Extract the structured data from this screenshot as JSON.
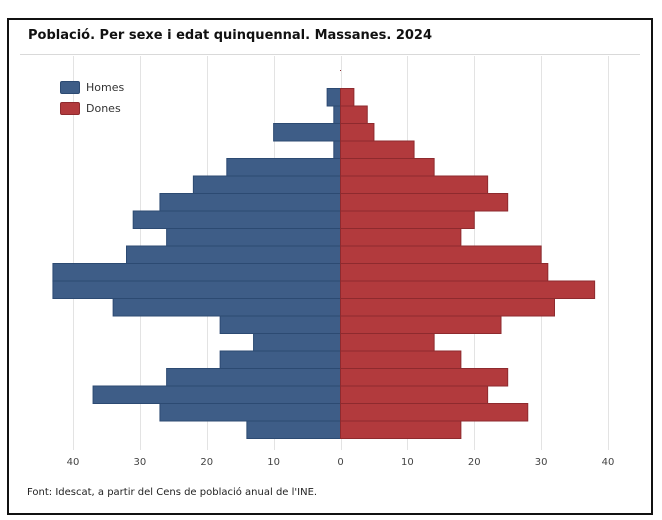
{
  "title": "Població. Per sexe i edat quinquennal. Massanes. 2024",
  "source": "Font: Idescat, a partir del Cens de població anual de l'INE.",
  "colors": {
    "homes": "#3e5d87",
    "homes_edge": "#2c4a72",
    "dones": "#b23a3d",
    "dones_edge": "#8e2a2e",
    "grid": "#e3e3e3"
  },
  "chart_data": {
    "type": "bar",
    "orientation": "horizontal",
    "layout": "population-pyramid",
    "title": "Població. Per sexe i edat quinquennal. Massanes. 2024",
    "xlabel": "",
    "ylabel": "",
    "xlim": [
      -40,
      40
    ],
    "x_ticks": [
      -40,
      -30,
      -20,
      -10,
      0,
      10,
      20,
      30,
      40
    ],
    "x_tick_labels": [
      "40",
      "30",
      "20",
      "10",
      "0",
      "10",
      "20",
      "30",
      "40"
    ],
    "grid": true,
    "legend_position": "top-left",
    "row_order": "top-to-bottom",
    "series": [
      {
        "name": "Homes",
        "color": "#3e5d87",
        "values": [
          0,
          2,
          1,
          10,
          1,
          17,
          22,
          27,
          31,
          26,
          32,
          43,
          43,
          34,
          18,
          13,
          18,
          26,
          37,
          27,
          14
        ]
      },
      {
        "name": "Dones",
        "color": "#b23a3d",
        "values": [
          0,
          2,
          4,
          5,
          11,
          14,
          22,
          25,
          20,
          18,
          30,
          31,
          38,
          32,
          24,
          14,
          18,
          25,
          22,
          28,
          18
        ]
      }
    ]
  }
}
